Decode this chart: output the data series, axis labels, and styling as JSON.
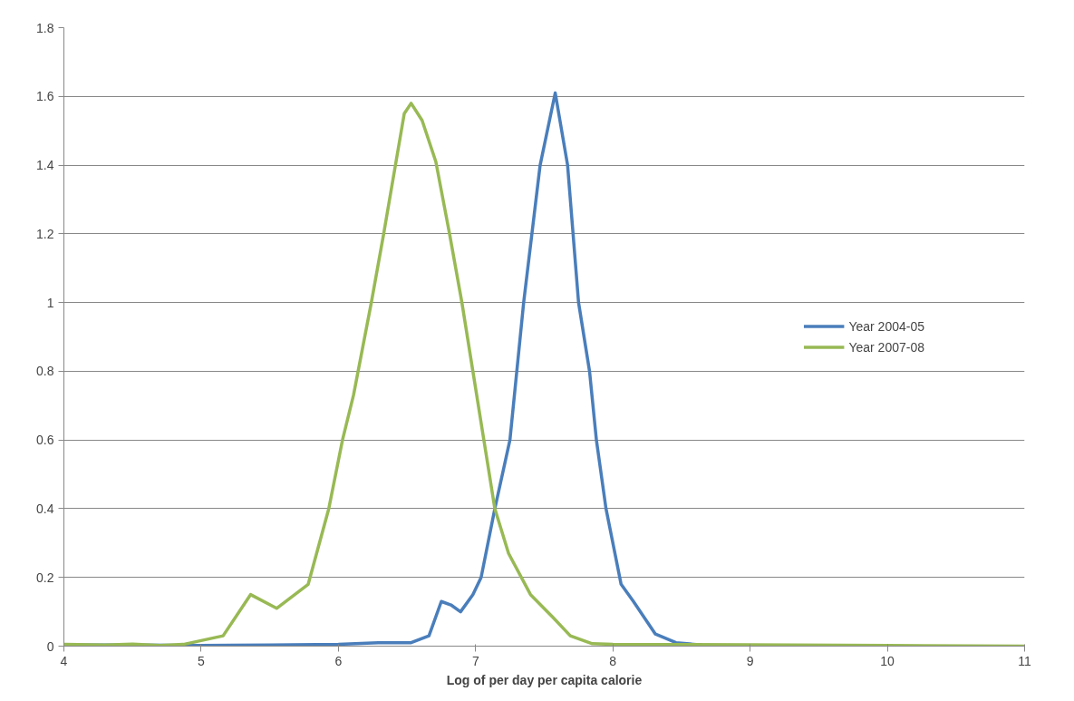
{
  "chart_data": {
    "type": "line",
    "xlabel": "Log of per day per capita calorie",
    "xlim": [
      4,
      11
    ],
    "xticks": [
      4,
      5,
      6,
      7,
      8,
      9,
      10,
      11
    ],
    "ylim": [
      0,
      1.8
    ],
    "yticks": [
      0,
      0.2,
      0.4,
      0.6,
      0.8,
      1,
      1.2,
      1.4,
      1.6,
      1.8
    ],
    "grid": "y",
    "legend": "right",
    "marker": "none",
    "line_style": "solid",
    "series": [
      {
        "name": "Year 2004-05",
        "color": "#4a7ebb",
        "x": [
          4,
          4.5,
          5,
          5.5,
          6,
          6.29,
          6.53,
          6.66,
          6.75,
          6.82,
          6.89,
          6.98,
          7.04,
          7.14,
          7.25,
          7.35,
          7.47,
          7.58,
          7.67,
          7.75,
          7.83,
          7.88,
          7.95,
          8.06,
          8.15,
          8.31,
          8.46,
          8.65
        ],
        "values": [
          0.003,
          0.003,
          0.002,
          0.003,
          0.005,
          0.01,
          0.01,
          0.03,
          0.13,
          0.12,
          0.1,
          0.15,
          0.2,
          0.4,
          0.6,
          1.0,
          1.4,
          1.61,
          1.4,
          1.0,
          0.8,
          0.6,
          0.4,
          0.18,
          0.13,
          0.035,
          0.01,
          0.003
        ]
      },
      {
        "name": "Year 2007-08",
        "color": "#98b954",
        "x": [
          4,
          4.3,
          4.5,
          4.7,
          4.87,
          5.16,
          5.36,
          5.55,
          5.78,
          5.93,
          6.03,
          6.11,
          6.24,
          6.33,
          6.42,
          6.48,
          6.53,
          6.61,
          6.71,
          6.81,
          6.9,
          6.98,
          7.06,
          7.14,
          7.24,
          7.4,
          7.56,
          7.69,
          7.85,
          8,
          9,
          10,
          11
        ],
        "values": [
          0.005,
          0.003,
          0.006,
          0.002,
          0.005,
          0.03,
          0.15,
          0.11,
          0.18,
          0.4,
          0.6,
          0.73,
          1.0,
          1.2,
          1.41,
          1.55,
          1.58,
          1.53,
          1.41,
          1.2,
          1.0,
          0.8,
          0.6,
          0.4,
          0.27,
          0.15,
          0.085,
          0.03,
          0.007,
          0.005,
          0.004,
          0.002,
          0
        ]
      }
    ]
  }
}
